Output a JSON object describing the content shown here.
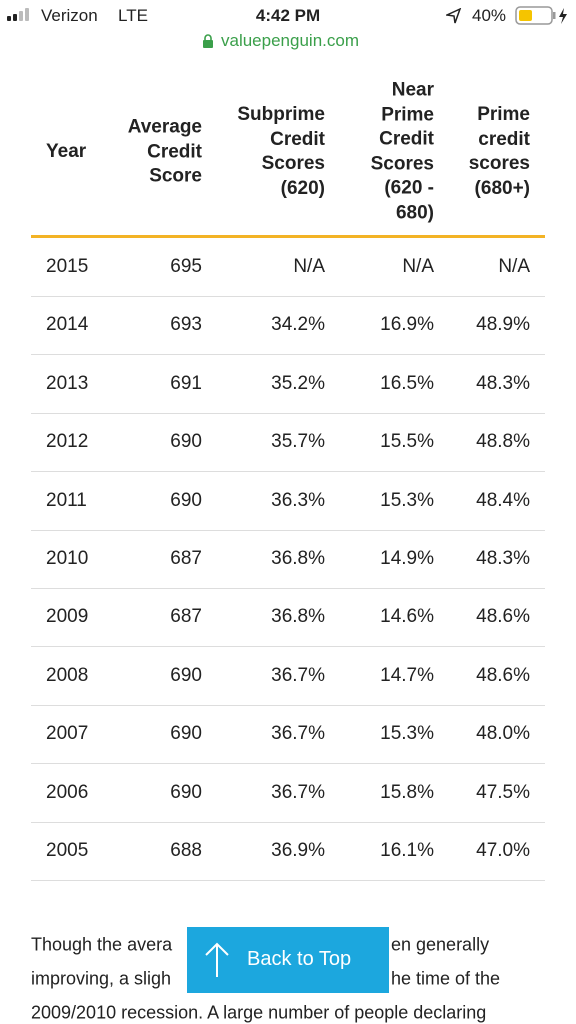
{
  "status_bar": {
    "carrier": "Verizon",
    "network": "LTE",
    "time": "4:42 PM",
    "battery": "40%"
  },
  "address_bar": {
    "url": "valuepenguin.com"
  },
  "table": {
    "columns": [
      "Year",
      "Average\nCredit\nScore",
      "Subprime\nCredit\nScores\n(620)",
      "Near\nPrime\nCredit\nScores\n(620 -\n680)",
      "Prime\ncredit\nscores\n(680+)"
    ],
    "rows": [
      [
        "2015",
        "695",
        "N/A",
        "N/A",
        "N/A"
      ],
      [
        "2014",
        "693",
        "34.2%",
        "16.9%",
        "48.9%"
      ],
      [
        "2013",
        "691",
        "35.2%",
        "16.5%",
        "48.3%"
      ],
      [
        "2012",
        "690",
        "35.7%",
        "15.5%",
        "48.8%"
      ],
      [
        "2011",
        "690",
        "36.3%",
        "15.3%",
        "48.4%"
      ],
      [
        "2010",
        "687",
        "36.8%",
        "14.9%",
        "48.3%"
      ],
      [
        "2009",
        "687",
        "36.8%",
        "14.6%",
        "48.6%"
      ],
      [
        "2008",
        "690",
        "36.7%",
        "14.7%",
        "48.6%"
      ],
      [
        "2007",
        "690",
        "36.7%",
        "15.3%",
        "48.0%"
      ],
      [
        "2006",
        "690",
        "36.7%",
        "15.8%",
        "47.5%"
      ],
      [
        "2005",
        "688",
        "36.9%",
        "16.1%",
        "47.0%"
      ]
    ]
  },
  "paragraph": {
    "lines": [
      [
        "Though the avera",
        "en generally"
      ],
      [
        "improving, a sligh",
        "he time of the"
      ],
      [
        "2009/2010 recession. A large number of people declaring"
      ]
    ]
  },
  "back_to_top": {
    "label": "Back to Top"
  }
}
